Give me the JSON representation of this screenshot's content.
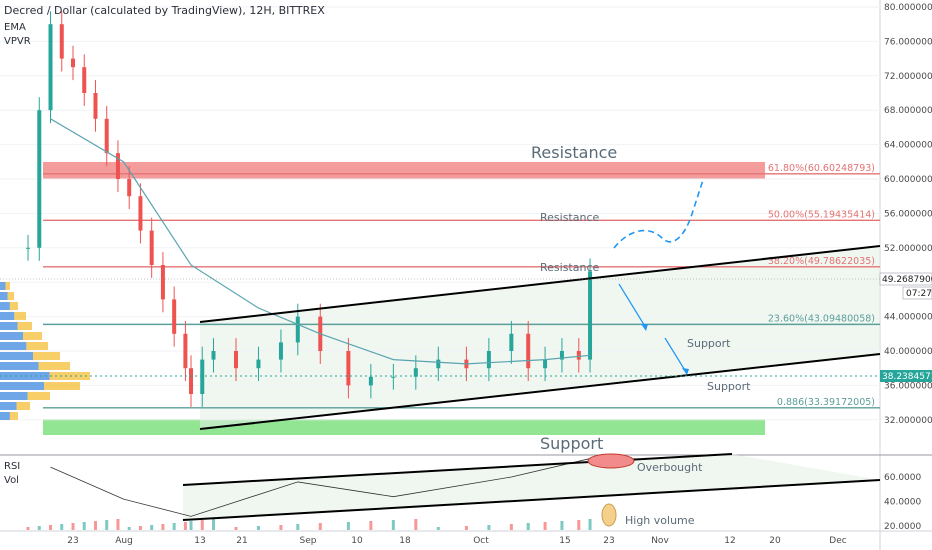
{
  "header": {
    "title": "Decred / Dollar (calculated by TradingView), 12H, BITTREX",
    "ema_label": "EMA",
    "vpvr_label": "VPVR",
    "rsi_label": "RSI",
    "vol_label": "Vol"
  },
  "price_tag": {
    "value": "49.26879000",
    "timer": "07:27"
  },
  "last_price_tag": {
    "value": "38.23845715"
  },
  "annotations": {
    "resistance_big": "Resistance",
    "resistance_mid": "Resistance",
    "resistance_low": "Resistance",
    "support_1": "Support",
    "support_2": "Support",
    "support_big": "Support",
    "overbought": "Overbought",
    "high_volume": "High volume"
  },
  "fib_levels": [
    {
      "label": "61.80%(60.60248793)",
      "value": 60.60248793,
      "color": "#e57373"
    },
    {
      "label": "50.00%(55.19435414)",
      "value": 55.19435414,
      "color": "#e57373"
    },
    {
      "label": "38.20%(49.78622035)",
      "value": 49.78622035,
      "color": "#e57373"
    },
    {
      "label": "23.60%(43.09480058)",
      "value": 43.09480058,
      "color": "#5c9e9a"
    },
    {
      "label": "0.886(33.39172005)",
      "value": 33.39172005,
      "color": "#5c9e9a"
    }
  ],
  "price_axis_labels": [
    "80.00000000",
    "76.00000000",
    "72.00000000",
    "68.00000000",
    "64.00000000",
    "60.00000000",
    "56.00000000",
    "52.00000000",
    "48.00000000",
    "44.00000000",
    "40.00000000",
    "36.00000000",
    "32.00000000"
  ],
  "rsi_axis_labels": [
    "60.0000",
    "40.0000",
    "20.0000"
  ],
  "time_axis_labels": [
    "23",
    "Aug",
    "13",
    "21",
    "Sep",
    "10",
    "18",
    "Oct",
    "15",
    "23",
    "Nov",
    "12",
    "20",
    "Dec"
  ],
  "colors": {
    "up": "#26a69a",
    "down": "#ef5350",
    "ema": "#5aa4b0",
    "resistance_zone": "#f28b8b",
    "support_zone": "#7fe07f",
    "channel": "#000000",
    "projection": "#2196f3"
  },
  "chart_data": {
    "type": "candlestick",
    "symbol": "Decred / Dollar",
    "interval": "12H",
    "exchange": "BITTREX",
    "ylim": [
      31,
      81
    ],
    "close_series": [
      {
        "date": "Jul 15",
        "close": 52
      },
      {
        "date": "Jul 17",
        "close": 68
      },
      {
        "date": "Jul 19",
        "close": 78
      },
      {
        "date": "Jul 21",
        "close": 74
      },
      {
        "date": "Jul 23",
        "close": 73
      },
      {
        "date": "Jul 25",
        "close": 70
      },
      {
        "date": "Jul 27",
        "close": 67
      },
      {
        "date": "Jul 29",
        "close": 63
      },
      {
        "date": "Jul 31",
        "close": 60
      },
      {
        "date": "Aug 2",
        "close": 58
      },
      {
        "date": "Aug 4",
        "close": 54
      },
      {
        "date": "Aug 6",
        "close": 50
      },
      {
        "date": "Aug 8",
        "close": 46
      },
      {
        "date": "Aug 10",
        "close": 42
      },
      {
        "date": "Aug 12",
        "close": 38
      },
      {
        "date": "Aug 13",
        "close": 35
      },
      {
        "date": "Aug 15",
        "close": 39
      },
      {
        "date": "Aug 17",
        "close": 40
      },
      {
        "date": "Aug 21",
        "close": 38
      },
      {
        "date": "Aug 25",
        "close": 39
      },
      {
        "date": "Aug 29",
        "close": 41
      },
      {
        "date": "Sep 1",
        "close": 44
      },
      {
        "date": "Sep 5",
        "close": 40
      },
      {
        "date": "Sep 10",
        "close": 36
      },
      {
        "date": "Sep 14",
        "close": 37
      },
      {
        "date": "Sep 18",
        "close": 37
      },
      {
        "date": "Sep 22",
        "close": 38
      },
      {
        "date": "Sep 26",
        "close": 39
      },
      {
        "date": "Oct 1",
        "close": 38
      },
      {
        "date": "Oct 5",
        "close": 40
      },
      {
        "date": "Oct 9",
        "close": 42
      },
      {
        "date": "Oct 12",
        "close": 38
      },
      {
        "date": "Oct 15",
        "close": 39
      },
      {
        "date": "Oct 18",
        "close": 40
      },
      {
        "date": "Oct 21",
        "close": 39
      },
      {
        "date": "Oct 23",
        "close": 49.27
      }
    ],
    "ema": [
      {
        "date": "Jul 19",
        "value": 67
      },
      {
        "date": "Aug 1",
        "value": 62
      },
      {
        "date": "Aug 13",
        "value": 50
      },
      {
        "date": "Aug 25",
        "value": 45
      },
      {
        "date": "Sep 5",
        "value": 42
      },
      {
        "date": "Sep 18",
        "value": 39
      },
      {
        "date": "Oct 1",
        "value": 38.5
      },
      {
        "date": "Oct 15",
        "value": 39
      },
      {
        "date": "Oct 23",
        "value": 39.5
      }
    ],
    "rsi": [
      {
        "date": "Jul 19",
        "value": 68
      },
      {
        "date": "Aug 1",
        "value": 42
      },
      {
        "date": "Aug 13",
        "value": 28
      },
      {
        "date": "Sep 1",
        "value": 56
      },
      {
        "date": "Sep 18",
        "value": 44
      },
      {
        "date": "Oct 9",
        "value": 60
      },
      {
        "date": "Oct 23",
        "value": 75
      }
    ],
    "last_price": 49.26879,
    "prior_close": 38.23845715
  }
}
